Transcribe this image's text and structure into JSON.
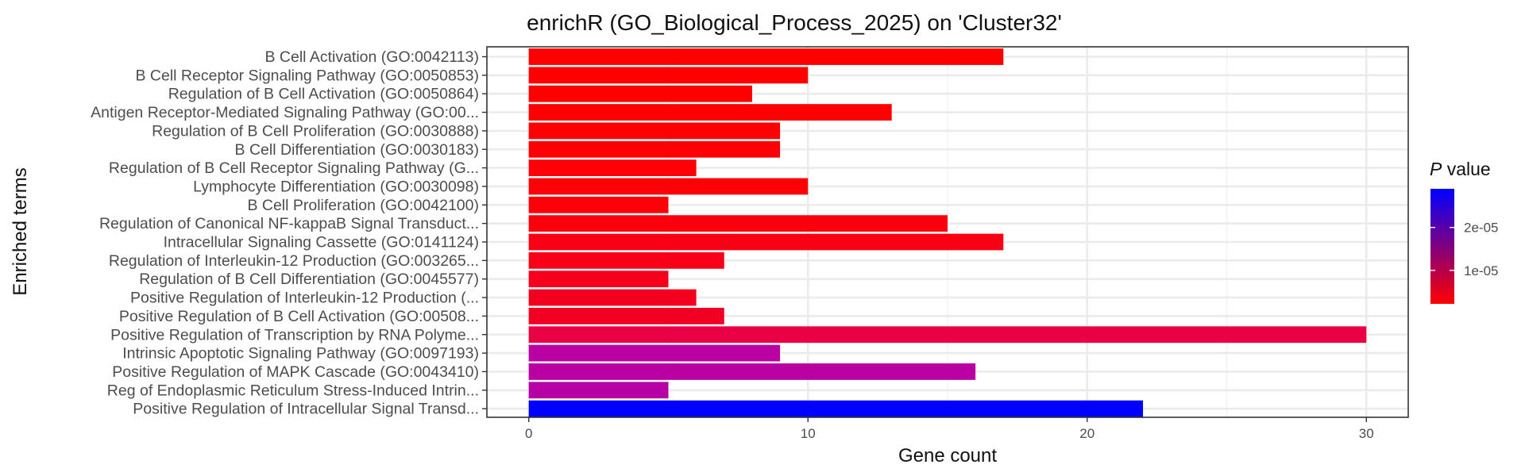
{
  "chart_data": {
    "type": "bar",
    "orientation": "horizontal",
    "title": "enrichR (GO_Biological_Process_2025) on 'Cluster32'",
    "xlabel": "Gene count",
    "ylabel": "Enriched terms",
    "xlim": [
      -1.5,
      31.5
    ],
    "xticks": [
      0,
      10,
      20,
      30
    ],
    "grid": true,
    "legend": {
      "title_italic": "P",
      "title_rest": " value",
      "placement": "right",
      "scale": "gradient",
      "low_color": "#ff0000",
      "high_color": "#0000ff",
      "domain": [
        2.2e-06,
        2.9e-05
      ],
      "ticks": [
        {
          "value": 1e-05,
          "label": "1e-05"
        },
        {
          "value": 2e-05,
          "label": "2e-05"
        }
      ]
    },
    "categories": [
      "B Cell Activation (GO:0042113)",
      "B Cell Receptor Signaling Pathway (GO:0050853)",
      "Regulation of B Cell Activation (GO:0050864)",
      "Antigen Receptor-Mediated Signaling Pathway (GO:00...",
      "Regulation of B Cell Proliferation (GO:0030888)",
      "B Cell Differentiation (GO:0030183)",
      "Regulation of B Cell Receptor Signaling Pathway (G...",
      "Lymphocyte Differentiation (GO:0030098)",
      "B Cell Proliferation (GO:0042100)",
      "Regulation of Canonical NF-kappaB Signal Transduct...",
      "Intracellular Signaling Cassette (GO:0141124)",
      "Regulation of Interleukin-12 Production (GO:003265...",
      "Regulation of B Cell Differentiation (GO:0045577)",
      "Positive Regulation of Interleukin-12 Production (...",
      "Positive Regulation of B Cell Activation (GO:00508...",
      "Positive Regulation of Transcription by RNA Polyme...",
      "Intrinsic Apoptotic Signaling Pathway (GO:0097193)",
      "Positive Regulation of MAPK Cascade (GO:0043410)",
      "Reg of Endoplasmic Reticulum Stress-Induced Intrin...",
      "Positive Regulation of Intracellular Signal Transd..."
    ],
    "values": [
      17,
      10,
      8,
      13,
      9,
      9,
      6,
      10,
      5,
      15,
      17,
      7,
      5,
      6,
      7,
      30,
      9,
      16,
      5,
      22
    ],
    "colors": [
      "#ff0000",
      "#ff0000",
      "#ff0000",
      "#ff0002",
      "#ff0002",
      "#ff0004",
      "#ff0006",
      "#ff0006",
      "#fd0008",
      "#fb000c",
      "#f90014",
      "#f80018",
      "#f6001c",
      "#f4001f",
      "#f20024",
      "#ea0044",
      "#ba00a0",
      "#b800a3",
      "#b600a6",
      "#0000ff"
    ]
  }
}
